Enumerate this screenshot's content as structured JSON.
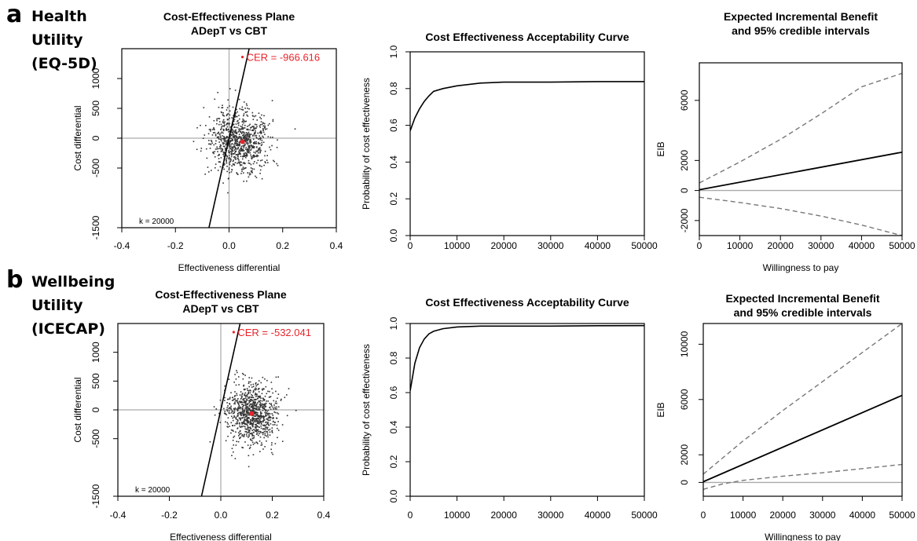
{
  "rows": [
    {
      "label": "a",
      "title_lines": [
        "Health",
        "Utility",
        "(EQ-5D)"
      ]
    },
    {
      "label": "b",
      "title_lines": [
        "Wellbeing",
        "Utility",
        "(ICECAP)"
      ]
    }
  ],
  "colors": {
    "scatter": "#333333",
    "mean": "#e8242a",
    "axis_ref": "#aaaaaa",
    "ci": "#777777",
    "line": "#000000",
    "cer_text": "#e8242a"
  },
  "chart_data": [
    {
      "id": "a-ce-plane",
      "type": "scatter",
      "title": [
        "Cost-Effectiveness Plane",
        "ADepT vs CBT"
      ],
      "xlabel": "Effectiveness differential",
      "ylabel": "Cost differential",
      "xlim": [
        -0.4,
        0.4
      ],
      "ylim": [
        -1500,
        1500
      ],
      "xticks": [
        "-0.4",
        "-0.2",
        "0.0",
        "0.2",
        "0.4"
      ],
      "yticks": [
        "-1500",
        "-500",
        "0",
        "500",
        "1000"
      ],
      "ytick_values": [
        -1500,
        -500,
        0,
        500,
        1000
      ],
      "annotation": "CER = -966.616",
      "annotation_point": [
        0.05,
        1360
      ],
      "k_label": "k = 20000",
      "k": 20000,
      "mean_point": [
        0.05,
        -60
      ],
      "cloud": {
        "mean_x": 0.04,
        "mean_y": -60,
        "sd_x": 0.055,
        "sd_y": 260,
        "n": 900
      }
    },
    {
      "id": "a-ceac",
      "type": "line",
      "title": [
        "Cost Effectiveness Acceptability Curve"
      ],
      "xlabel": "",
      "ylabel": "Probability of cost effectiveness",
      "xlim": [
        0,
        50000
      ],
      "ylim": [
        0,
        1
      ],
      "xticks": [
        "0",
        "10000",
        "20000",
        "30000",
        "40000",
        "50000"
      ],
      "yticks": [
        "0.0",
        "0.2",
        "0.4",
        "0.6",
        "0.8",
        "1.0"
      ],
      "x": [
        0,
        1000,
        2000,
        3000,
        4000,
        5000,
        7000,
        10000,
        15000,
        20000,
        30000,
        40000,
        50000
      ],
      "y": [
        0.57,
        0.64,
        0.69,
        0.73,
        0.76,
        0.785,
        0.8,
        0.815,
        0.83,
        0.835,
        0.835,
        0.838,
        0.838
      ]
    },
    {
      "id": "a-eib",
      "type": "line",
      "title": [
        "Expected Incremental Benefit",
        "and 95% credible intervals"
      ],
      "xlabel": "Willingness to pay",
      "ylabel": "EIB",
      "xlim": [
        0,
        50000
      ],
      "ylim": [
        -3000,
        8500
      ],
      "xticks": [
        "0",
        "10000",
        "20000",
        "30000",
        "40000",
        "50000"
      ],
      "yticks": [
        "-2000",
        "0",
        "2000",
        "6000"
      ],
      "ytick_values": [
        -2000,
        0,
        2000,
        6000
      ],
      "reference_y": 0,
      "series": [
        {
          "values_x": [
            0,
            50000
          ],
          "values": [
            50,
            2550
          ],
          "style": "solid"
        },
        {
          "values_x": [
            0,
            10000,
            20000,
            30000,
            40000,
            50000
          ],
          "values": [
            500,
            1900,
            3400,
            5100,
            6900,
            7800
          ],
          "style": "dashed"
        },
        {
          "values_x": [
            0,
            10000,
            20000,
            30000,
            40000,
            50000
          ],
          "values": [
            -450,
            -800,
            -1200,
            -1700,
            -2300,
            -3000
          ],
          "style": "dashed"
        }
      ]
    },
    {
      "id": "b-ce-plane",
      "type": "scatter",
      "title": [
        "Cost-Effectiveness Plane",
        "ADepT vs CBT"
      ],
      "xlabel": "Effectiveness differential",
      "ylabel": "Cost differential",
      "xlim": [
        -0.4,
        0.4
      ],
      "ylim": [
        -1500,
        1500
      ],
      "xticks": [
        "-0.4",
        "-0.2",
        "0.0",
        "0.2",
        "0.4"
      ],
      "yticks": [
        "-1500",
        "-500",
        "0",
        "500",
        "1000"
      ],
      "ytick_values": [
        -1500,
        -500,
        0,
        500,
        1000
      ],
      "annotation": "CER = -532.041",
      "annotation_point": [
        0.05,
        1350
      ],
      "k_label": "k = 20000",
      "k": 20000,
      "mean_point": [
        0.12,
        -65
      ],
      "cloud": {
        "mean_x": 0.12,
        "mean_y": -65,
        "sd_x": 0.05,
        "sd_y": 260,
        "n": 900
      }
    },
    {
      "id": "b-ceac",
      "type": "line",
      "title": [
        "Cost Effectiveness Acceptability Curve"
      ],
      "xlabel": "",
      "ylabel": "Probability of cost effectiveness",
      "xlim": [
        0,
        50000
      ],
      "ylim": [
        0,
        1
      ],
      "xticks": [
        "0",
        "10000",
        "20000",
        "30000",
        "40000",
        "50000"
      ],
      "yticks": [
        "0.0",
        "0.2",
        "0.4",
        "0.6",
        "0.8",
        "1.0"
      ],
      "x": [
        0,
        1000,
        2000,
        3000,
        4000,
        5000,
        7000,
        10000,
        15000,
        20000,
        30000,
        40000,
        50000
      ],
      "y": [
        0.61,
        0.77,
        0.86,
        0.91,
        0.94,
        0.955,
        0.97,
        0.98,
        0.985,
        0.985,
        0.985,
        0.987,
        0.988
      ]
    },
    {
      "id": "b-eib",
      "type": "line",
      "title": [
        "Expected Incremental Benefit",
        "and 95% credible intervals"
      ],
      "xlabel": "Willingness to pay",
      "ylabel": "EIB",
      "xlim": [
        0,
        50000
      ],
      "ylim": [
        -1000,
        11500
      ],
      "xticks": [
        "0",
        "10000",
        "20000",
        "30000",
        "40000",
        "50000"
      ],
      "yticks": [
        "0",
        "2000",
        "6000",
        "10000"
      ],
      "ytick_values": [
        0,
        2000,
        6000,
        10000
      ],
      "reference_y": 0,
      "series": [
        {
          "values_x": [
            0,
            50000
          ],
          "values": [
            50,
            6300
          ],
          "style": "solid"
        },
        {
          "values_x": [
            0,
            10000,
            20000,
            30000,
            40000,
            50000
          ],
          "values": [
            600,
            3000,
            5200,
            7300,
            9400,
            11500
          ],
          "style": "dashed"
        },
        {
          "values_x": [
            0,
            5000,
            10000,
            20000,
            30000,
            40000,
            50000
          ],
          "values": [
            -500,
            -100,
            150,
            450,
            700,
            1000,
            1300
          ],
          "style": "dashed"
        }
      ]
    }
  ]
}
